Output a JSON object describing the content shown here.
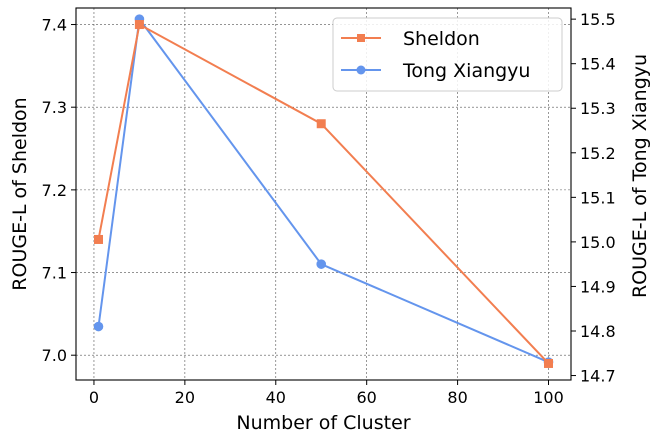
{
  "chart_data": {
    "type": "line",
    "title": "",
    "xlabel": "Number of Cluster",
    "ylabel_left": "ROUGE-L of Sheldon",
    "ylabel_right": "ROUGE-L of Tong Xiangyu",
    "xlim": [
      -3.95,
      104.95
    ],
    "ylim_left": [
      6.97,
      7.42
    ],
    "ylim_right": [
      14.69,
      15.525
    ],
    "x_ticks": [
      0,
      20,
      40,
      60,
      80,
      100
    ],
    "y_ticks_left": [
      7.0,
      7.1,
      7.2,
      7.3,
      7.4
    ],
    "y_ticks_right": [
      14.7,
      14.8,
      14.9,
      15.0,
      15.1,
      15.2,
      15.3,
      15.4,
      15.5
    ],
    "grid": true,
    "legend_position": "top-right",
    "series": [
      {
        "name": "Sheldon",
        "axis": "left",
        "color": "#F27E50",
        "marker": "square",
        "x": [
          1,
          10,
          50,
          100
        ],
        "y": [
          7.14,
          7.4,
          7.28,
          6.99
        ]
      },
      {
        "name": "Tong Xiangyu",
        "axis": "right",
        "color": "#6495ED",
        "marker": "circle",
        "x": [
          1,
          10,
          50,
          100
        ],
        "y": [
          14.81,
          15.5,
          14.95,
          14.73
        ]
      }
    ]
  }
}
